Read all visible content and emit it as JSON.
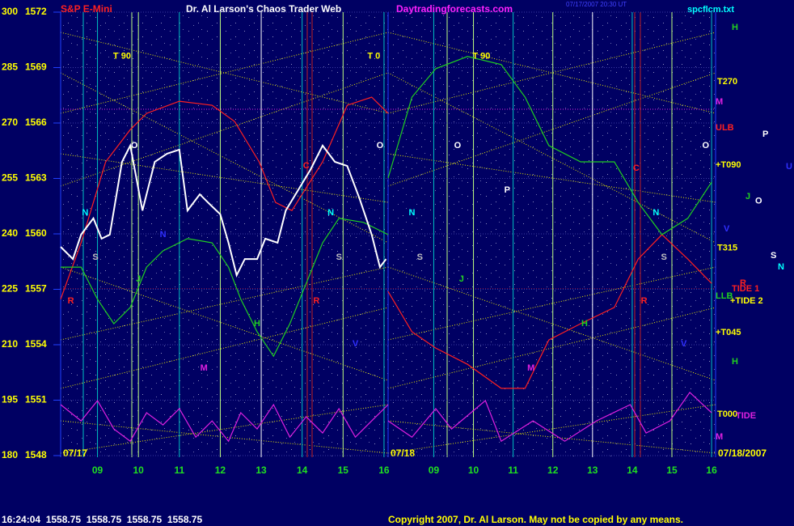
{
  "header": {
    "symbol": "S&P E-Mini",
    "title": "Dr. Al Larson's Chaos Trader Web",
    "site": "Daytradingforecasts.com",
    "timestamp": "07/17/2007 20:30 UT",
    "file": "spcflcm.txt"
  },
  "footer": {
    "quote": "16:24:04  1558.75  1558.75  1558.75  1558.75",
    "copyright": "Copyright 2007, Dr. Al Larson. May not be copied by any means."
  },
  "chart_data": [
    {
      "type": "line",
      "date_label": "07/17",
      "grid": true,
      "xlim": [
        8.1,
        16.1
      ],
      "xticks": [
        {
          "value": 9,
          "label": "09"
        },
        10,
        11,
        12,
        13,
        14,
        15,
        16
      ],
      "ylim": [
        180,
        300
      ],
      "yticks": [
        180,
        195,
        210,
        225,
        240,
        255,
        270,
        285,
        300
      ],
      "y2lim": [
        1548,
        1572
      ],
      "y2ticks": [
        1548,
        1551,
        1554,
        1557,
        1560,
        1563,
        1566,
        1569,
        1572
      ],
      "series": [
        {
          "color": "#ff2020",
          "x": [
            8.1,
            8.6,
            9.2,
            9.8,
            10.2,
            11.0,
            11.8,
            12.35,
            12.95,
            13.35,
            13.75,
            14.5,
            15.1,
            15.7,
            16.1
          ],
          "values": [
            222.3,
            237.6,
            259.5,
            268.2,
            272.6,
            275.9,
            274.8,
            270.4,
            259.5,
            248.5,
            246.3,
            259.5,
            274.8,
            277.0,
            272.6
          ]
        },
        {
          "color": "#20d020",
          "x": [
            8.1,
            8.6,
            9.0,
            9.4,
            9.8,
            10.2,
            10.6,
            11.2,
            11.8,
            12.2,
            12.5,
            12.9,
            13.3,
            13.7,
            14.1,
            14.5,
            14.9,
            15.5,
            16.1
          ],
          "values": [
            231.0,
            231.0,
            222.3,
            215.7,
            220.1,
            231.0,
            235.4,
            238.7,
            237.6,
            231.0,
            222.3,
            213.5,
            206.9,
            215.7,
            226.6,
            237.6,
            244.2,
            243.1,
            239.8
          ]
        },
        {
          "color": "#e020e0",
          "x": [
            8.1,
            8.6,
            9.0,
            9.4,
            9.8,
            10.2,
            10.6,
            11.0,
            11.4,
            11.8,
            12.2,
            12.5,
            12.9,
            13.3,
            13.7,
            14.1,
            14.5,
            14.9,
            15.3,
            15.7,
            16.1
          ],
          "values": [
            193.8,
            189.4,
            194.9,
            187.2,
            183.9,
            191.6,
            188.3,
            192.7,
            185.0,
            189.4,
            183.9,
            191.6,
            187.2,
            193.8,
            185.0,
            190.5,
            186.1,
            192.7,
            185.0,
            189.4,
            193.8
          ]
        },
        {
          "color": "#ffffff",
          "x": [
            8.1,
            8.4,
            8.6,
            8.9,
            9.1,
            9.3,
            9.6,
            9.8,
            10.1,
            10.4,
            10.7,
            11.0,
            11.2,
            11.5,
            11.7,
            12.0,
            12.2,
            12.4,
            12.6,
            12.9,
            13.1,
            13.4,
            13.6,
            13.9,
            14.2,
            14.5,
            14.8,
            15.1,
            15.4,
            15.7,
            15.9,
            16.05
          ],
          "values": [
            236.5,
            233.2,
            239.8,
            244.2,
            238.7,
            239.8,
            259.5,
            263.9,
            246.3,
            259.5,
            261.7,
            262.8,
            246.3,
            250.7,
            248.5,
            245.3,
            237.6,
            228.8,
            233.2,
            233.2,
            238.7,
            237.6,
            246.3,
            251.8,
            257.3,
            263.9,
            259.5,
            258.4,
            249.6,
            239.8,
            231.0,
            233.2
          ]
        }
      ],
      "annotations": [
        {
          "text": "T 90",
          "x": 9.6,
          "y": 288,
          "color": "#ffff00"
        },
        {
          "text": "T 0",
          "x": 15.75,
          "y": 288,
          "color": "#ffff00"
        },
        {
          "text": "O",
          "x": 9.9,
          "y": 263.9,
          "color": "#ffffff"
        },
        {
          "text": "O",
          "x": 15.9,
          "y": 263.9,
          "color": "#ffffff"
        },
        {
          "text": "N",
          "x": 8.7,
          "y": 245.7,
          "color": "#00ffff"
        },
        {
          "text": "N",
          "x": 14.7,
          "y": 245.7,
          "color": "#00ffff"
        },
        {
          "text": "N",
          "x": 10.6,
          "y": 239.8,
          "color": "#3030ff"
        },
        {
          "text": "S",
          "x": 8.95,
          "y": 233.6,
          "color": "#c0c0c0"
        },
        {
          "text": "S",
          "x": 14.9,
          "y": 233.6,
          "color": "#c0c0c0"
        },
        {
          "text": "J",
          "x": 10.0,
          "y": 227.7,
          "color": "#20d020"
        },
        {
          "text": "H",
          "x": 12.9,
          "y": 215.7,
          "color": "#20d020"
        },
        {
          "text": "M",
          "x": 11.6,
          "y": 203.6,
          "color": "#e020e0"
        },
        {
          "text": "R",
          "x": 8.35,
          "y": 221.8,
          "color": "#ff2020"
        },
        {
          "text": "R",
          "x": 14.35,
          "y": 221.8,
          "color": "#ff2020"
        },
        {
          "text": "V",
          "x": 15.3,
          "y": 210.2,
          "color": "#3030ff"
        },
        {
          "text": "C",
          "x": 14.1,
          "y": 258.4,
          "color": "#ff2020"
        }
      ]
    },
    {
      "type": "line",
      "date_label": "07/18",
      "date_full": "07/18/2007",
      "xlim": [
        7.85,
        16.1
      ],
      "xticks": [
        {
          "value": 9,
          "label": "09"
        },
        10,
        11,
        12,
        13,
        14,
        15,
        16
      ],
      "ylim": [
        180,
        300
      ],
      "series": [
        {
          "color": "#ff2020",
          "x": [
            7.85,
            8.45,
            9.05,
            9.85,
            10.7,
            11.3,
            11.9,
            12.7,
            13.55,
            14.15,
            14.75,
            15.4,
            16.0
          ],
          "values": [
            224.4,
            213.5,
            209.1,
            204.7,
            198.2,
            198.2,
            211.3,
            215.7,
            220.1,
            233.2,
            239.8,
            233.2,
            226.6
          ]
        },
        {
          "color": "#20d020",
          "x": [
            7.85,
            8.45,
            9.05,
            9.85,
            10.7,
            11.3,
            11.9,
            12.7,
            13.55,
            14.15,
            14.75,
            15.4,
            16.0
          ],
          "values": [
            255.1,
            277.0,
            284.7,
            288.0,
            285.8,
            277.0,
            263.9,
            259.5,
            259.5,
            248.5,
            239.8,
            244.2,
            254.0
          ]
        },
        {
          "color": "#e020e0",
          "x": [
            7.85,
            8.45,
            9.05,
            9.45,
            10.3,
            10.7,
            11.5,
            12.3,
            13.1,
            13.95,
            14.35,
            14.95,
            15.45,
            16.0
          ],
          "values": [
            189.4,
            185.0,
            192.7,
            187.2,
            194.9,
            183.9,
            189.4,
            183.9,
            189.4,
            193.8,
            186.1,
            189.4,
            197.1,
            191.6
          ]
        }
      ],
      "annotations": [
        {
          "text": "T 90",
          "x": 10.2,
          "y": 288,
          "color": "#ffff00"
        },
        {
          "text": "O",
          "x": 9.6,
          "y": 263.9,
          "color": "#ffffff"
        },
        {
          "text": "O",
          "x": 15.85,
          "y": 263.9,
          "color": "#ffffff"
        },
        {
          "text": "P",
          "x": 10.85,
          "y": 251.8,
          "color": "#ffffff"
        },
        {
          "text": "N",
          "x": 8.45,
          "y": 245.7,
          "color": "#00ffff"
        },
        {
          "text": "N",
          "x": 14.6,
          "y": 245.7,
          "color": "#00ffff"
        },
        {
          "text": "S",
          "x": 8.65,
          "y": 233.6,
          "color": "#c0c0c0"
        },
        {
          "text": "S",
          "x": 14.8,
          "y": 233.6,
          "color": "#c0c0c0"
        },
        {
          "text": "J",
          "x": 9.7,
          "y": 227.7,
          "color": "#20d020"
        },
        {
          "text": "H",
          "x": 12.8,
          "y": 215.7,
          "color": "#20d020"
        },
        {
          "text": "M",
          "x": 11.45,
          "y": 203.6,
          "color": "#e020e0"
        },
        {
          "text": "C",
          "x": 14.1,
          "y": 257.7,
          "color": "#ff2020"
        },
        {
          "text": "R",
          "x": 14.3,
          "y": 221.8,
          "color": "#ff2020"
        },
        {
          "text": "V",
          "x": 15.3,
          "y": 210.2,
          "color": "#3030ff"
        }
      ],
      "levels": [
        {
          "text": "T270",
          "y": 281.2,
          "color": "#ffff00"
        },
        {
          "text": "M",
          "y": 275.7,
          "color": "#e020e0"
        },
        {
          "text": "ULB",
          "y": 268.7,
          "color": "#ff2020"
        },
        {
          "text": "+T090",
          "y": 258.6,
          "color": "#ffff00"
        },
        {
          "text": "T315",
          "y": 236.1,
          "color": "#ffff00"
        },
        {
          "text": "LLB",
          "y": 223.1,
          "color": "#20d020"
        },
        {
          "text": "+T045",
          "y": 213.3,
          "color": "#ffff00"
        },
        {
          "text": "T000",
          "y": 191.2,
          "color": "#ffff00"
        },
        {
          "text": "TIDE",
          "y": 190.7,
          "color": "#e020e0"
        },
        {
          "text": "TIDE 1",
          "y": 225.1,
          "color": "#ff2020"
        },
        {
          "text": "+TIDE 2",
          "y": 221.8,
          "color": "#ffff00"
        },
        {
          "text": "H",
          "y": 295.8,
          "color": "#20d020"
        },
        {
          "text": "H",
          "y": 205.4,
          "color": "#20d020"
        },
        {
          "text": "M",
          "y": 185.0,
          "color": "#e020e0"
        },
        {
          "text": "V",
          "y": 241.3,
          "color": "#3030ff"
        },
        {
          "text": "J",
          "y": 250.1,
          "color": "#20d020"
        },
        {
          "text": "O",
          "y": 248.8,
          "color": "#ffffff"
        },
        {
          "text": "P",
          "y": 266.9,
          "color": "#ffffff"
        },
        {
          "text": "U",
          "y": 258.2,
          "color": "#3030ff"
        },
        {
          "text": "S",
          "y": 234.1,
          "color": "#ffffff"
        },
        {
          "text": "N",
          "y": 231.0,
          "color": "#00ffff"
        },
        {
          "text": "R",
          "y": 226.6,
          "color": "#ff2020"
        }
      ]
    }
  ]
}
